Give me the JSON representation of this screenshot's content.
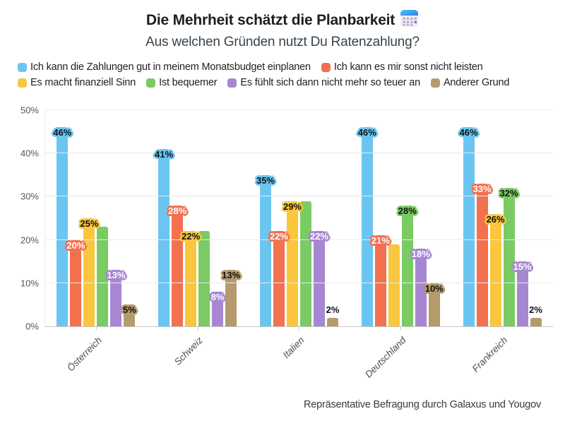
{
  "header": {
    "title": "Die Mehrheit schätzt die Planbarkeit",
    "title_icon": "calendar-icon",
    "subtitle": "Aus welchen Gründen nutzt Du Ratenzahlung?"
  },
  "chart_data": {
    "type": "bar",
    "title": "Die Mehrheit schätzt die Planbarkeit",
    "subtitle": "Aus welchen Gründen nutzt Du Ratenzahlung?",
    "categories": [
      "Österreich",
      "Schweiz",
      "Italien",
      "Deutschland",
      "Frankreich"
    ],
    "series": [
      {
        "name": "Ich kann die Zahlungen gut in meinem Monatsbudget einplanen",
        "color": "#6bc5f1",
        "label_text_color": "#111111",
        "values": [
          46,
          41,
          35,
          46,
          46
        ]
      },
      {
        "name": "Ich kann es mir sonst nicht leisten",
        "color": "#f3714f",
        "label_text_color": "#ffffff",
        "values": [
          20,
          28,
          22,
          21,
          33
        ]
      },
      {
        "name": "Es macht finanziell Sinn",
        "color": "#fac63d",
        "label_text_color": "#111111",
        "values": [
          25,
          22,
          29,
          19,
          26
        ],
        "labels_shown": [
          true,
          true,
          true,
          false,
          true
        ]
      },
      {
        "name": "Ist bequemer",
        "color": "#7acb63",
        "label_text_color": "#111111",
        "values": [
          23,
          22,
          29,
          28,
          32
        ],
        "labels_shown": [
          false,
          false,
          false,
          true,
          true
        ]
      },
      {
        "name": "Es fühlt sich dann nicht mehr so teuer an",
        "color": "#a787d2",
        "label_text_color": "#ffffff",
        "values": [
          13,
          8,
          22,
          18,
          15
        ]
      },
      {
        "name": "Anderer Grund",
        "color": "#b59b6c",
        "label_text_color": "#111111",
        "values": [
          5,
          13,
          2,
          10,
          2
        ],
        "halo_shown": [
          true,
          true,
          false,
          true,
          false
        ]
      }
    ],
    "value_suffix": "%",
    "y_ticks": [
      "0%",
      "10%",
      "20%",
      "30%",
      "40%",
      "50%"
    ],
    "ylim": [
      0,
      50
    ],
    "grid": true,
    "legend_position": "top"
  },
  "footer": {
    "source": "Repräsentative Befragung durch Galaxus und Yougov"
  }
}
